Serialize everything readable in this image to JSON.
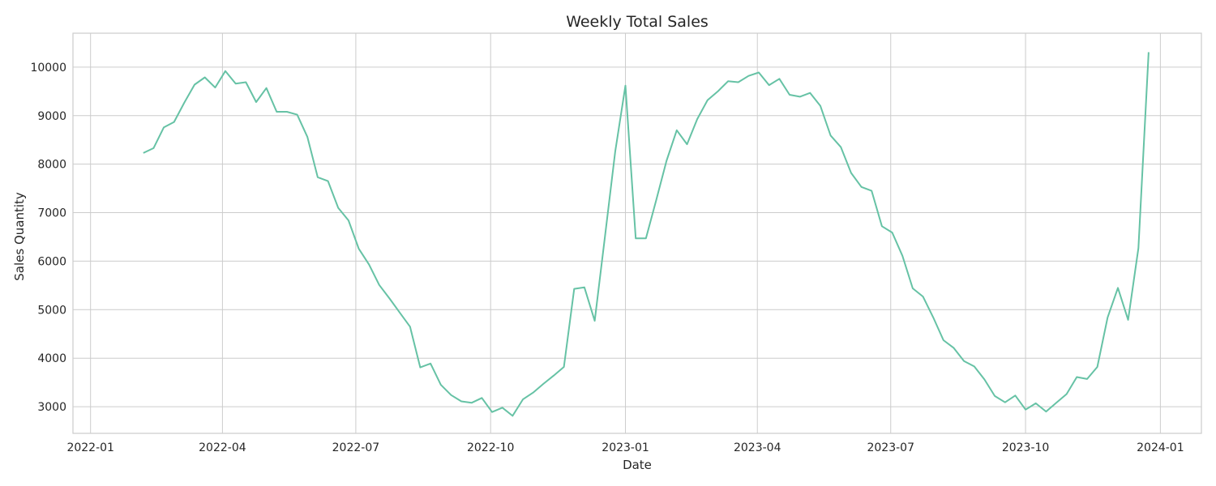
{
  "chart_data": {
    "type": "line",
    "title": "Weekly Total Sales",
    "xlabel": "Date",
    "ylabel": "Sales Quantity",
    "line_color": "#66c2a5",
    "grid": true,
    "xlim": [
      "2021-12-20",
      "2024-01-29"
    ],
    "ylim": [
      2450,
      10700
    ],
    "x_ticks": [
      "2022-01",
      "2022-04",
      "2022-07",
      "2022-10",
      "2023-01",
      "2023-04",
      "2023-07",
      "2023-10",
      "2024-01"
    ],
    "x_tick_dates": [
      "2022-01-01",
      "2022-04-01",
      "2022-07-01",
      "2022-10-01",
      "2023-01-01",
      "2023-04-01",
      "2023-07-01",
      "2023-10-01",
      "2024-01-01"
    ],
    "y_ticks": [
      3000,
      4000,
      5000,
      6000,
      7000,
      8000,
      9000,
      10000
    ],
    "series": [
      {
        "x": [
          "2022-02-06",
          "2022-02-13",
          "2022-02-20",
          "2022-02-27",
          "2022-03-06",
          "2022-03-13",
          "2022-03-20",
          "2022-03-27",
          "2022-04-03",
          "2022-04-10",
          "2022-04-17",
          "2022-04-24",
          "2022-05-01",
          "2022-05-08",
          "2022-05-15",
          "2022-05-22",
          "2022-05-29",
          "2022-06-05",
          "2022-06-12",
          "2022-06-19",
          "2022-06-26",
          "2022-07-03",
          "2022-07-10",
          "2022-07-17",
          "2022-07-24",
          "2022-07-31",
          "2022-08-07",
          "2022-08-14",
          "2022-08-21",
          "2022-08-28",
          "2022-09-04",
          "2022-09-11",
          "2022-09-18",
          "2022-09-25",
          "2022-10-02",
          "2022-10-09",
          "2022-10-16",
          "2022-10-23",
          "2022-10-30",
          "2022-11-06",
          "2022-11-13",
          "2022-11-20",
          "2022-11-27",
          "2022-12-04",
          "2022-12-11",
          "2022-12-18",
          "2022-12-25",
          "2023-01-01",
          "2023-01-08",
          "2023-01-15",
          "2023-01-22",
          "2023-01-29",
          "2023-02-05",
          "2023-02-12",
          "2023-02-19",
          "2023-02-26",
          "2023-03-05",
          "2023-03-12",
          "2023-03-19",
          "2023-03-26",
          "2023-04-02",
          "2023-04-09",
          "2023-04-16",
          "2023-04-23",
          "2023-04-30",
          "2023-05-07",
          "2023-05-14",
          "2023-05-21",
          "2023-05-28",
          "2023-06-04",
          "2023-06-11",
          "2023-06-18",
          "2023-06-25",
          "2023-07-02",
          "2023-07-09",
          "2023-07-16",
          "2023-07-23",
          "2023-07-30",
          "2023-08-06",
          "2023-08-13",
          "2023-08-20",
          "2023-08-27",
          "2023-09-03",
          "2023-09-10",
          "2023-09-17",
          "2023-09-24",
          "2023-10-01",
          "2023-10-08",
          "2023-10-15",
          "2023-10-22",
          "2023-10-29",
          "2023-11-05",
          "2023-11-12",
          "2023-11-19",
          "2023-11-26",
          "2023-12-03",
          "2023-12-10",
          "2023-12-17",
          "2023-12-24"
        ],
        "y": [
          8230,
          8330,
          8760,
          8870,
          9270,
          9640,
          9790,
          9580,
          9920,
          9660,
          9690,
          9280,
          9570,
          9080,
          9080,
          9020,
          8560,
          7730,
          7650,
          7100,
          6840,
          6260,
          5930,
          5510,
          5230,
          4940,
          4650,
          3810,
          3890,
          3450,
          3240,
          3110,
          3080,
          3180,
          2890,
          2980,
          2810,
          3150,
          3290,
          3470,
          3640,
          3820,
          5430,
          5460,
          4770,
          6500,
          8260,
          9620,
          6470,
          6470,
          7260,
          8070,
          8700,
          8410,
          8930,
          9320,
          9500,
          9710,
          9690,
          9820,
          9890,
          9630,
          9760,
          9430,
          9390,
          9470,
          9200,
          8590,
          8350,
          7820,
          7530,
          7450,
          6720,
          6590,
          6110,
          5440,
          5270,
          4840,
          4370,
          4210,
          3940,
          3830,
          3560,
          3220,
          3090,
          3230,
          2940,
          3070,
          2900,
          3080,
          3260,
          3610,
          3570,
          3820,
          4840,
          5450,
          4790,
          6270,
          10310
        ]
      }
    ]
  }
}
